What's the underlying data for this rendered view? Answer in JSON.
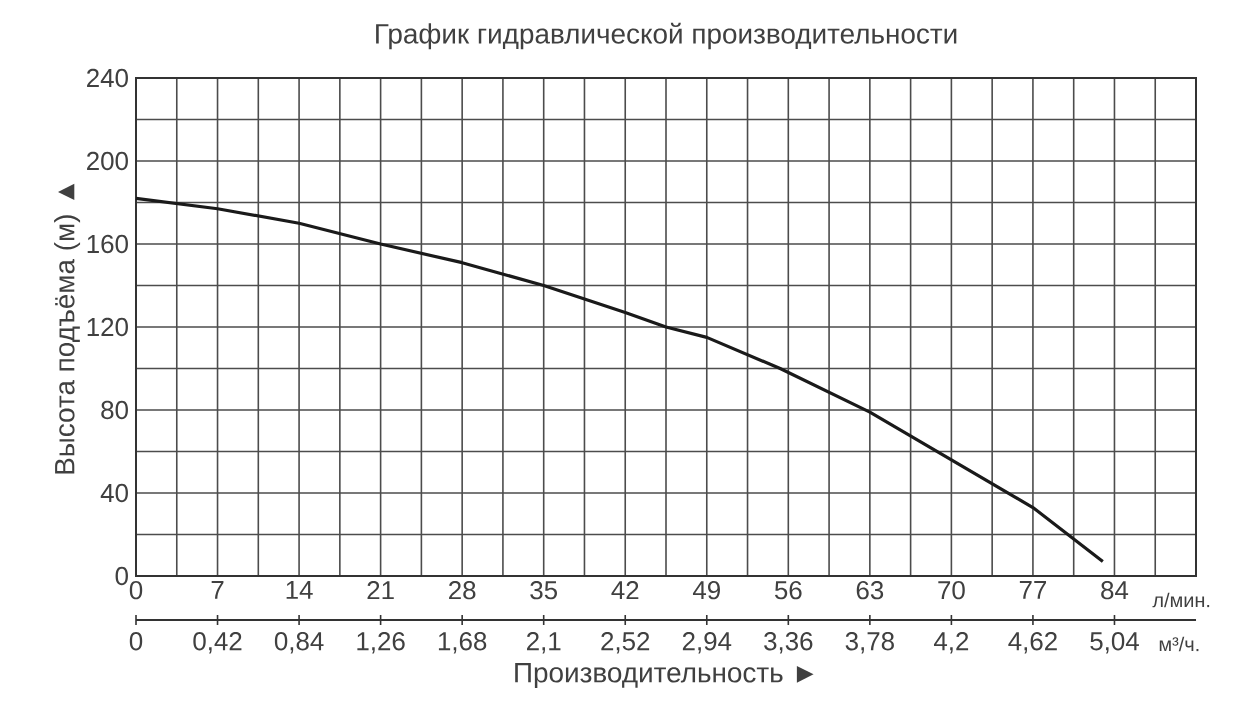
{
  "chart_data": {
    "type": "line",
    "title": "График гидравлической производительности",
    "xlabel": "Производительность ►",
    "ylabel": "Высота подъёма (м) ▲",
    "annotations": [
      "л/мин.",
      "м³/ч."
    ],
    "series": [
      {
        "color": "#1a1a1a",
        "x": [
          0,
          7,
          14,
          21,
          28,
          35,
          42,
          45.5,
          49,
          55.3,
          63,
          70,
          77,
          83
        ],
        "values": [
          182,
          177,
          170,
          160,
          151,
          140,
          127,
          120,
          115,
          100,
          79,
          56,
          33,
          7
        ]
      }
    ],
    "xlim": [
      0,
      91
    ],
    "xticks": [
      0,
      {
        "value": 3.5,
        "label": null
      },
      7,
      {
        "value": 10.5,
        "label": null
      },
      14,
      {
        "value": 17.5,
        "label": null
      },
      21,
      {
        "value": 24.5,
        "label": null
      },
      28,
      {
        "value": 31.5,
        "label": null
      },
      35,
      {
        "value": 38.5,
        "label": null
      },
      42,
      {
        "value": 45.5,
        "label": null
      },
      49,
      {
        "value": 52.5,
        "label": null
      },
      56,
      {
        "value": 59.5,
        "label": null
      },
      63,
      {
        "value": 66.5,
        "label": null
      },
      70,
      {
        "value": 73.5,
        "label": null
      },
      77,
      {
        "value": 80.5,
        "label": null
      },
      84,
      {
        "value": 87.5,
        "label": null
      },
      {
        "value": 91,
        "label": null
      }
    ],
    "x2lim": [
      0,
      5.46
    ],
    "x2ticks": [
      0,
      {
        "value": 0.42,
        "label": "0,42"
      },
      {
        "value": 0.84,
        "label": "0,84"
      },
      {
        "value": 1.26,
        "label": "1,26"
      },
      {
        "value": 1.68,
        "label": "1,68"
      },
      {
        "value": 2.1,
        "label": "2,1"
      },
      {
        "value": 2.52,
        "label": "2,52"
      },
      {
        "value": 2.94,
        "label": "2,94"
      },
      {
        "value": 3.36,
        "label": "3,36"
      },
      {
        "value": 3.78,
        "label": "3,78"
      },
      {
        "value": 4.2,
        "label": "4,2"
      },
      {
        "value": 4.62,
        "label": "4,62"
      },
      {
        "value": 5.04,
        "label": "5,04"
      }
    ],
    "ylim": [
      0,
      240
    ],
    "yticks": [
      0,
      {
        "value": 20,
        "label": null
      },
      40,
      {
        "value": 60,
        "label": null
      },
      80,
      {
        "value": 100,
        "label": null
      },
      120,
      {
        "value": 140,
        "label": null
      },
      160,
      {
        "value": 180,
        "label": null
      },
      200,
      {
        "value": 220,
        "label": null
      },
      240
    ],
    "grid": true,
    "marker": "none",
    "line_style": "solid"
  }
}
